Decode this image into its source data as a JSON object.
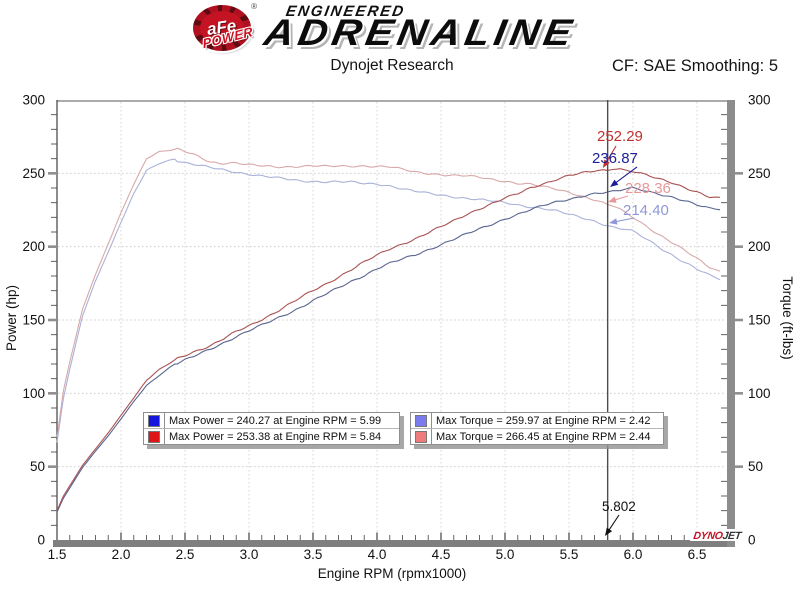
{
  "header": {
    "badge_text": "aFe",
    "badge_reg": "®",
    "badge_sub": "POWER",
    "logo_line1": "ENGINEERED",
    "logo_line2": "ADRENALINE",
    "title": "Dynojet Research",
    "smoothing_label": "CF: SAE Smoothing: 5"
  },
  "chart_data": {
    "type": "line",
    "title": "Dynojet Research",
    "xlabel": "Engine RPM (rpmx1000)",
    "ylabel_left": "Power (hp)",
    "ylabel_right": "Torque (ft-lbs)",
    "xlim": [
      1.5,
      6.74
    ],
    "ylim_left": [
      0,
      300
    ],
    "ylim_right": [
      0,
      300
    ],
    "x_ticks": [
      1.5,
      2.0,
      2.5,
      3.0,
      3.5,
      4.0,
      4.5,
      5.0,
      5.5,
      6.0,
      6.5
    ],
    "y_ticks": [
      0,
      50,
      100,
      150,
      200,
      250,
      300
    ],
    "grid": "dotted-major",
    "x": [
      1.5,
      1.55,
      1.6,
      1.7,
      1.8,
      1.9,
      2.0,
      2.1,
      2.2,
      2.3,
      2.42,
      2.44,
      2.5,
      2.6,
      2.7,
      2.8,
      2.9,
      3.0,
      3.1,
      3.2,
      3.3,
      3.4,
      3.5,
      3.6,
      3.7,
      3.8,
      3.9,
      4.0,
      4.1,
      4.2,
      4.3,
      4.4,
      4.5,
      4.6,
      4.7,
      4.8,
      4.9,
      5.0,
      5.1,
      5.2,
      5.3,
      5.4,
      5.5,
      5.6,
      5.7,
      5.8,
      5.84,
      5.9,
      5.99,
      6.1,
      6.2,
      6.3,
      6.4,
      6.5,
      6.6,
      6.68
    ],
    "series": [
      {
        "id": "power-stock",
        "name": "Max Power = 240.27 at Engine RPM = 5.99",
        "axis": "left",
        "color": "#5a6590",
        "legend_color": "#1515e0",
        "max": {
          "value": 240.27,
          "rpm": 5.99
        },
        "values": [
          19,
          28.5,
          35.5,
          49.5,
          60.5,
          71,
          82.5,
          94.5,
          105.5,
          112.5,
          119.8,
          120.2,
          122.5,
          126.5,
          130.5,
          134.5,
          138.5,
          142.5,
          146.5,
          150.5,
          154.5,
          158.5,
          163,
          167.5,
          172,
          176.5,
          180.5,
          185,
          188.5,
          191.5,
          194.5,
          198,
          201.5,
          205,
          208.5,
          212,
          215.5,
          219,
          222,
          225,
          228,
          230.5,
          232.5,
          234.5,
          236,
          236.8,
          237.3,
          238.5,
          240.3,
          238.5,
          236,
          233.5,
          231,
          228.5,
          226.5,
          226
        ]
      },
      {
        "id": "power-afe",
        "name": "Max Power = 253.38 at Engine RPM = 5.84",
        "axis": "left",
        "color": "#aa5252",
        "legend_color": "#e01515",
        "max": {
          "value": 253.38,
          "rpm": 5.84
        },
        "values": [
          20,
          30,
          37,
          51,
          62,
          73,
          85,
          97,
          109,
          116,
          122.7,
          123.8,
          126,
          129.5,
          132.5,
          137,
          142,
          146,
          150.5,
          155,
          160,
          165,
          170,
          174.5,
          179.5,
          184.5,
          189.5,
          194,
          198.5,
          202,
          205.5,
          209.5,
          213.5,
          217.5,
          222,
          226,
          229.5,
          233,
          236,
          240,
          243,
          246,
          248.5,
          250,
          251.5,
          252.3,
          253.4,
          253,
          251.8,
          249,
          246,
          243.5,
          240.5,
          237.5,
          234,
          233
        ]
      },
      {
        "id": "torque-stock",
        "name": "Max Torque = 259.97 at Engine RPM = 2.42",
        "axis": "right",
        "color": "#aab2d8",
        "legend_color": "#7b7bf0",
        "max": {
          "value": 259.97,
          "rpm": 2.42
        },
        "values": [
          66.5,
          96.6,
          116.5,
          152.9,
          176.5,
          196.3,
          216.6,
          236.3,
          251.9,
          256.9,
          260,
          258.7,
          257.3,
          255.5,
          253.8,
          252.3,
          250.9,
          249.5,
          248.2,
          247,
          245.9,
          244.9,
          244.6,
          244.3,
          244.2,
          243.9,
          243.1,
          242.9,
          241.5,
          239.4,
          237.6,
          236.3,
          235.2,
          234.1,
          233,
          232,
          231,
          230,
          228.6,
          227.2,
          225.9,
          224.2,
          222,
          219.9,
          217.5,
          214.4,
          213.4,
          212.3,
          210.7,
          205.4,
          199.9,
          194.7,
          189.6,
          184.6,
          180.2,
          177.7
        ]
      },
      {
        "id": "torque-afe",
        "name": "Max Torque = 266.45 at Engine RPM = 2.44",
        "axis": "right",
        "color": "#d9a9a9",
        "legend_color": "#f07b7b",
        "max": {
          "value": 266.45,
          "rpm": 2.44
        },
        "values": [
          70,
          101.7,
          121.5,
          157.6,
          180.9,
          201.8,
          223.2,
          242.6,
          260.2,
          264.9,
          266.3,
          266.5,
          264.7,
          261.6,
          257.7,
          257,
          257.2,
          255.6,
          255,
          254.4,
          254.6,
          254.9,
          255.1,
          254.6,
          254.8,
          255,
          255.2,
          254.7,
          254.3,
          252.6,
          251,
          250.1,
          249.2,
          248.4,
          248.1,
          247.3,
          246,
          244.8,
          243.1,
          242.4,
          240.8,
          239.3,
          237.3,
          234.5,
          231.7,
          228.5,
          227.9,
          225.2,
          220.8,
          214.4,
          208.4,
          203,
          197.4,
          191.9,
          186.2,
          183.2
        ]
      }
    ],
    "cursor": {
      "x": 5.802,
      "label": "5.802",
      "readouts": [
        {
          "series": "power-afe",
          "label": "252.29",
          "color": "#c03030"
        },
        {
          "series": "power-stock",
          "label": "236.87",
          "color": "#1d1d99"
        },
        {
          "series": "torque-afe",
          "label": "228.36",
          "color": "#e89898"
        },
        {
          "series": "torque-stock",
          "label": "214.40",
          "color": "#9099d8"
        }
      ]
    },
    "watermark": {
      "part1": "DYNO",
      "part2": "JET"
    }
  }
}
